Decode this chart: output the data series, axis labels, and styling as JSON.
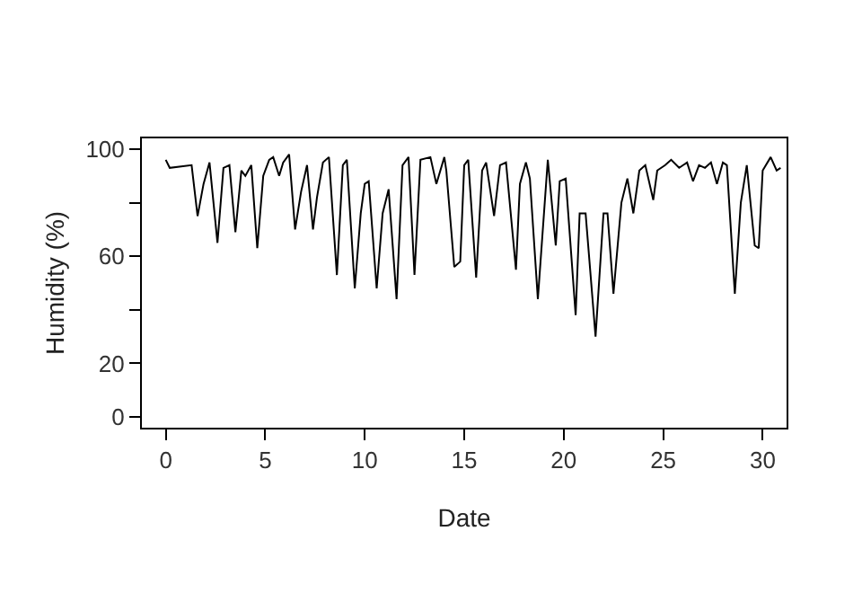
{
  "chart_data": {
    "type": "line",
    "xlabel": "Date",
    "ylabel": "Humidity (%)",
    "x": [
      0,
      0.2,
      1.3,
      1.6,
      1.9,
      2.2,
      2.6,
      2.9,
      3.2,
      3.5,
      3.8,
      4.0,
      4.3,
      4.6,
      4.9,
      5.2,
      5.4,
      5.7,
      5.9,
      6.2,
      6.5,
      6.8,
      7.1,
      7.4,
      7.6,
      7.9,
      8.2,
      8.6,
      8.9,
      9.1,
      9.5,
      9.8,
      10.0,
      10.2,
      10.6,
      10.9,
      11.2,
      11.6,
      11.9,
      12.2,
      12.5,
      12.8,
      13.3,
      13.6,
      14.0,
      14.1,
      14.5,
      14.8,
      15.0,
      15.2,
      15.6,
      15.9,
      16.1,
      16.5,
      16.8,
      17.1,
      17.6,
      17.8,
      18.1,
      18.3,
      18.7,
      19.2,
      19.6,
      19.8,
      20.1,
      20.6,
      20.8,
      21.1,
      21.6,
      22.0,
      22.2,
      22.5,
      22.9,
      23.2,
      23.5,
      23.8,
      24.1,
      24.5,
      24.7,
      25.1,
      25.4,
      25.8,
      26.2,
      26.5,
      26.8,
      27.1,
      27.4,
      27.7,
      28.0,
      28.2,
      28.6,
      28.9,
      29.2,
      29.6,
      29.8,
      30.0,
      30.4,
      30.7,
      30.9
    ],
    "values": [
      96,
      93,
      94,
      75,
      87,
      95,
      65,
      93,
      94,
      69,
      92,
      90,
      94,
      63,
      90,
      96,
      97,
      90,
      95,
      98,
      70,
      84,
      94,
      70,
      82,
      95,
      97,
      53,
      94,
      96,
      48,
      76,
      87,
      88,
      48,
      76,
      85,
      44,
      94,
      97,
      53,
      96,
      97,
      87,
      97,
      92,
      56,
      58,
      94,
      96,
      52,
      92,
      95,
      75,
      94,
      95,
      55,
      87,
      95,
      89,
      44,
      96,
      64,
      88,
      89,
      38,
      76,
      76,
      30,
      76,
      76,
      46,
      80,
      89,
      76,
      92,
      94,
      81,
      92,
      94,
      96,
      93,
      95,
      88,
      94,
      93,
      95,
      87,
      95,
      94,
      46,
      80,
      94,
      64,
      63,
      92,
      97,
      92,
      93
    ],
    "color": "#000000",
    "line_style": "solid",
    "marker": "none",
    "xlim": [
      -1.2,
      31.2
    ],
    "ylim": [
      -4,
      104
    ],
    "xticks": [
      0,
      5,
      10,
      15,
      20,
      25,
      30
    ],
    "yticks": [
      0,
      20,
      {
        "value": 40,
        "label": null
      },
      60,
      {
        "value": 80,
        "label": null
      },
      100
    ]
  }
}
